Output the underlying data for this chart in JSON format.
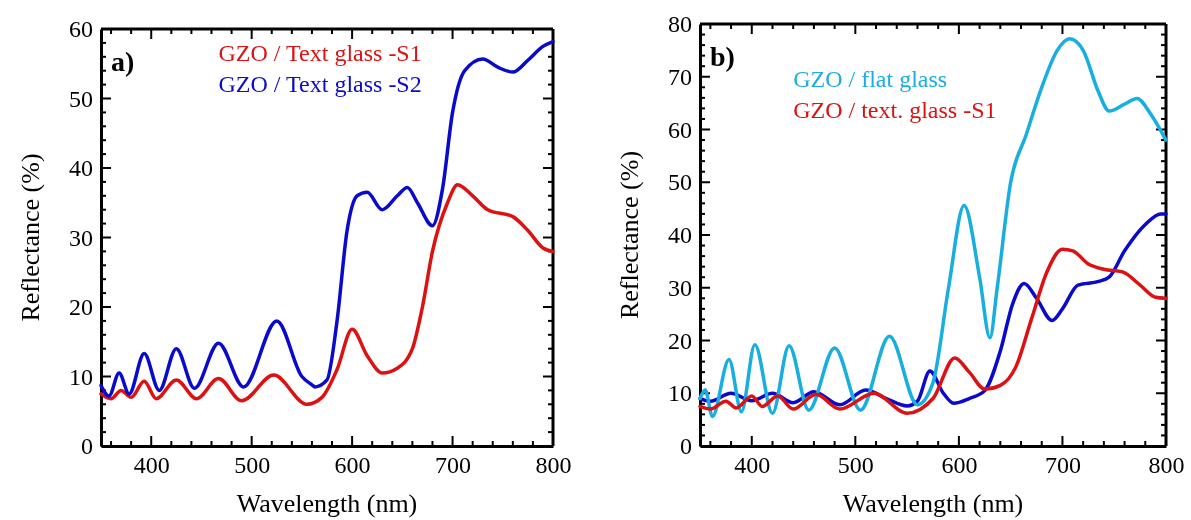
{
  "chart_data": [
    {
      "type": "line",
      "xlabel": "Wavelength (nm)",
      "ylabel": "Reflectance (%)",
      "annotations": [
        "a)"
      ],
      "legend": "top",
      "grid": false,
      "xlim": [
        350,
        800
      ],
      "ylim": [
        0,
        60
      ],
      "xticks": [
        {
          "value": 360,
          "label": null
        },
        {
          "value": 380,
          "label": null
        },
        400,
        {
          "value": 420,
          "label": null
        },
        {
          "value": 440,
          "label": null
        },
        {
          "value": 460,
          "label": null
        },
        {
          "value": 480,
          "label": null
        },
        500,
        {
          "value": 520,
          "label": null
        },
        {
          "value": 540,
          "label": null
        },
        {
          "value": 560,
          "label": null
        },
        {
          "value": 580,
          "label": null
        },
        600,
        {
          "value": 620,
          "label": null
        },
        {
          "value": 640,
          "label": null
        },
        {
          "value": 660,
          "label": null
        },
        {
          "value": 680,
          "label": null
        },
        700,
        {
          "value": 720,
          "label": null
        },
        {
          "value": 740,
          "label": null
        },
        {
          "value": 760,
          "label": null
        },
        {
          "value": 780,
          "label": null
        },
        800
      ],
      "yticks": [
        0,
        {
          "value": 2,
          "label": null
        },
        {
          "value": 4,
          "label": null
        },
        {
          "value": 6,
          "label": null
        },
        {
          "value": 8,
          "label": null
        },
        10,
        {
          "value": 12,
          "label": null
        },
        {
          "value": 14,
          "label": null
        },
        {
          "value": 16,
          "label": null
        },
        {
          "value": 18,
          "label": null
        },
        20,
        {
          "value": 22,
          "label": null
        },
        {
          "value": 24,
          "label": null
        },
        {
          "value": 26,
          "label": null
        },
        {
          "value": 28,
          "label": null
        },
        30,
        {
          "value": 32,
          "label": null
        },
        {
          "value": 34,
          "label": null
        },
        {
          "value": 36,
          "label": null
        },
        {
          "value": 38,
          "label": null
        },
        40,
        {
          "value": 42,
          "label": null
        },
        {
          "value": 44,
          "label": null
        },
        {
          "value": 46,
          "label": null
        },
        {
          "value": 48,
          "label": null
        },
        50,
        {
          "value": 52,
          "label": null
        },
        {
          "value": 54,
          "label": null
        },
        {
          "value": 56,
          "label": null
        },
        {
          "value": 58,
          "label": null
        },
        60
      ],
      "series": [
        {
          "name": "GZO / Text glass -S1",
          "color": "#dd1111",
          "x": [
            350,
            360,
            370,
            380,
            393,
            405,
            425,
            445,
            467,
            490,
            522,
            555,
            570,
            585,
            600,
            615,
            630,
            645,
            660,
            670,
            680,
            695,
            705,
            720,
            735,
            760,
            775,
            790,
            800
          ],
          "values": [
            7.5,
            6.8,
            8,
            7,
            9.3,
            6.8,
            9.5,
            6.8,
            9.7,
            6.5,
            10.2,
            6,
            7,
            11,
            16.8,
            13,
            10.5,
            11.2,
            14,
            20,
            28,
            35,
            37.6,
            36,
            34,
            33,
            31,
            28.5,
            28
          ]
        },
        {
          "name": "GZO / Text glass -S2",
          "color": "#0a0acc",
          "x": [
            350,
            358,
            368,
            378,
            393,
            408,
            425,
            443,
            467,
            492,
            525,
            550,
            560,
            563,
            575,
            585,
            595,
            605,
            615,
            630,
            645,
            655,
            665,
            680,
            690,
            700,
            712,
            730,
            745,
            760,
            775,
            790,
            800
          ],
          "values": [
            8.7,
            7.2,
            10.5,
            7.5,
            13.3,
            8,
            14,
            8.3,
            14.8,
            8.5,
            18,
            10,
            8.8,
            8.5,
            9.5,
            18,
            31,
            36,
            36.5,
            34,
            36,
            37.2,
            35,
            31.7,
            37,
            48,
            54,
            55.7,
            54.5,
            53.8,
            55.5,
            57.5,
            58.2
          ]
        }
      ]
    },
    {
      "type": "line",
      "xlabel": "Wavelength (nm)",
      "ylabel": "Reflectance (%)",
      "annotations": [
        "b)"
      ],
      "legend": "top left",
      "grid": false,
      "xlim": [
        350,
        800
      ],
      "ylim": [
        0,
        80
      ],
      "xticks": [
        {
          "value": 360,
          "label": null
        },
        {
          "value": 380,
          "label": null
        },
        400,
        {
          "value": 420,
          "label": null
        },
        {
          "value": 440,
          "label": null
        },
        {
          "value": 460,
          "label": null
        },
        {
          "value": 480,
          "label": null
        },
        500,
        {
          "value": 520,
          "label": null
        },
        {
          "value": 540,
          "label": null
        },
        {
          "value": 560,
          "label": null
        },
        {
          "value": 580,
          "label": null
        },
        600,
        {
          "value": 620,
          "label": null
        },
        {
          "value": 640,
          "label": null
        },
        {
          "value": 660,
          "label": null
        },
        {
          "value": 680,
          "label": null
        },
        700,
        {
          "value": 720,
          "label": null
        },
        {
          "value": 740,
          "label": null
        },
        {
          "value": 760,
          "label": null
        },
        {
          "value": 780,
          "label": null
        },
        800
      ],
      "yticks": [
        0,
        {
          "value": 2,
          "label": null
        },
        {
          "value": 4,
          "label": null
        },
        {
          "value": 6,
          "label": null
        },
        {
          "value": 8,
          "label": null
        },
        10,
        {
          "value": 12,
          "label": null
        },
        {
          "value": 14,
          "label": null
        },
        {
          "value": 16,
          "label": null
        },
        {
          "value": 18,
          "label": null
        },
        20,
        {
          "value": 22,
          "label": null
        },
        {
          "value": 24,
          "label": null
        },
        {
          "value": 26,
          "label": null
        },
        {
          "value": 28,
          "label": null
        },
        30,
        {
          "value": 32,
          "label": null
        },
        {
          "value": 34,
          "label": null
        },
        {
          "value": 36,
          "label": null
        },
        {
          "value": 38,
          "label": null
        },
        40,
        {
          "value": 42,
          "label": null
        },
        {
          "value": 44,
          "label": null
        },
        {
          "value": 46,
          "label": null
        },
        {
          "value": 48,
          "label": null
        },
        50,
        {
          "value": 52,
          "label": null
        },
        {
          "value": 54,
          "label": null
        },
        {
          "value": 56,
          "label": null
        },
        {
          "value": 58,
          "label": null
        },
        60,
        {
          "value": 62,
          "label": null
        },
        {
          "value": 64,
          "label": null
        },
        {
          "value": 66,
          "label": null
        },
        {
          "value": 68,
          "label": null
        },
        70,
        {
          "value": 72,
          "label": null
        },
        {
          "value": 74,
          "label": null
        },
        {
          "value": 76,
          "label": null
        },
        {
          "value": 78,
          "label": null
        },
        80
      ],
      "series": [
        {
          "color": "#0a0acc",
          "x": [
            350,
            360,
            380,
            400,
            420,
            440,
            460,
            485,
            510,
            530,
            550,
            560,
            572,
            585,
            595,
            610,
            625,
            640,
            652,
            663,
            675,
            690,
            700,
            715,
            735,
            745,
            760,
            780,
            795,
            800
          ],
          "values": [
            9,
            8.5,
            10,
            8.6,
            10,
            8.2,
            10.3,
            7.8,
            10.6,
            9,
            7.6,
            8.5,
            14.2,
            10,
            8.1,
            9,
            10.5,
            18,
            27,
            30.8,
            28,
            23.8,
            26,
            30.5,
            31.2,
            32,
            37,
            42,
            44,
            44
          ]
        },
        {
          "name": "GZO / flat glass",
          "color": "#18aee0",
          "x": [
            350,
            355,
            362,
            378,
            390,
            403,
            420,
            436,
            455,
            480,
            505,
            533,
            560,
            575,
            590,
            605,
            620,
            630,
            637,
            650,
            665,
            680,
            695,
            707,
            720,
            735,
            745,
            760,
            772,
            785,
            800
          ],
          "values": [
            9,
            10.6,
            5.6,
            16.4,
            6.5,
            19.2,
            6.2,
            19,
            6.8,
            18.6,
            6.8,
            20.8,
            7.8,
            12,
            30,
            45.6,
            32,
            20.5,
            30,
            50,
            59,
            68,
            75,
            77.2,
            75,
            67,
            63.5,
            64.8,
            65.9,
            63,
            58
          ]
        },
        {
          "name": "GZO / text. glass -S1",
          "color": "#dd1111",
          "x": [
            350,
            360,
            375,
            385,
            400,
            410,
            425,
            440,
            462,
            485,
            518,
            550,
            575,
            596,
            610,
            625,
            640,
            655,
            670,
            685,
            700,
            710,
            725,
            740,
            758,
            775,
            790,
            800
          ],
          "values": [
            7.5,
            7,
            8.5,
            7.2,
            9.5,
            7.5,
            9.5,
            7,
            9.8,
            7,
            10,
            6.2,
            9,
            16.7,
            14,
            10.8,
            11.5,
            15,
            24,
            33,
            37.3,
            37,
            34.5,
            33.5,
            33,
            30.5,
            28.2,
            28
          ]
        }
      ]
    }
  ]
}
